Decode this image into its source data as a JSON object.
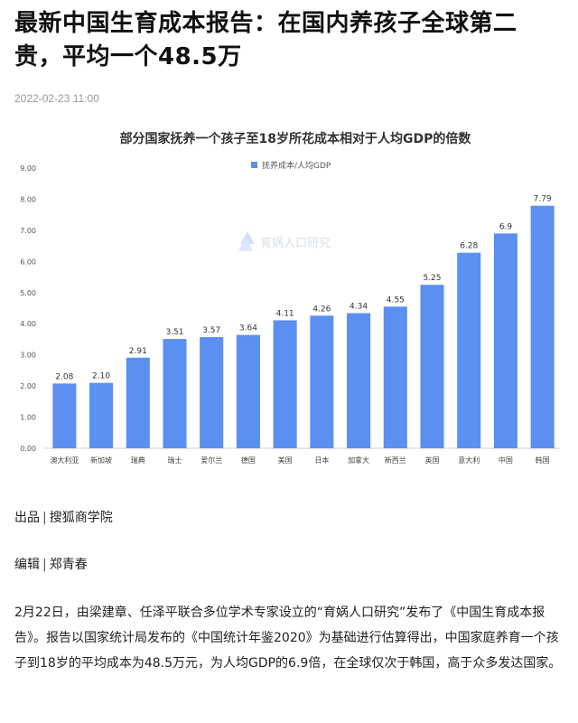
{
  "article": {
    "title": "最新中国生育成本报告：在国内养孩子全球第二贵，平均一个48.5万",
    "datetime": "2022-02-23 11:00",
    "source_label": "出品",
    "source_value": "搜狐商学院",
    "editor_label": "编辑",
    "editor_value": "郑青春",
    "separator": "|",
    "body": "2月22日，由梁建章、任泽平联合多位学术专家设立的“育娲人口研究”发布了《中国生育成本报告》。报告以国家统计局发布的《中国统计年鉴2020》为基础进行估算得出，中国家庭养育一个孩子到18岁的平均成本为48.5万元，为人均GDP的6.9倍，在全球仅次于韩国，高于众多发达国家。"
  },
  "chart_data": {
    "type": "bar",
    "title": "部分国家抚养一个孩子至18岁所花成本相对于人均GDP的倍数",
    "legend": "抚养成本/人均GDP",
    "legend_position": "top-right",
    "watermark": "育娲人口研究",
    "categories": [
      "澳大利亚",
      "新加坡",
      "瑞典",
      "瑞士",
      "爱尔兰",
      "德国",
      "美国",
      "日本",
      "加拿大",
      "新西兰",
      "英国",
      "意大利",
      "中国",
      "韩国"
    ],
    "values": [
      2.08,
      2.1,
      2.91,
      3.51,
      3.57,
      3.64,
      4.11,
      4.26,
      4.34,
      4.55,
      5.25,
      6.28,
      6.9,
      7.79
    ],
    "value_labels": [
      "2.08",
      "2.10",
      "2.91",
      "3.51",
      "3.57",
      "3.64",
      "4.11",
      "4.26",
      "4.34",
      "4.55",
      "5.25",
      "6.28",
      "6.9",
      "7.79"
    ],
    "yticks": [
      "0.00",
      "1.00",
      "2.00",
      "3.00",
      "4.00",
      "5.00",
      "6.00",
      "7.00",
      "8.00",
      "9.00"
    ],
    "ylim": [
      0,
      9
    ],
    "grid": false,
    "bar_color": "#5b8ff0",
    "legend_color": "#5b8ff0"
  }
}
